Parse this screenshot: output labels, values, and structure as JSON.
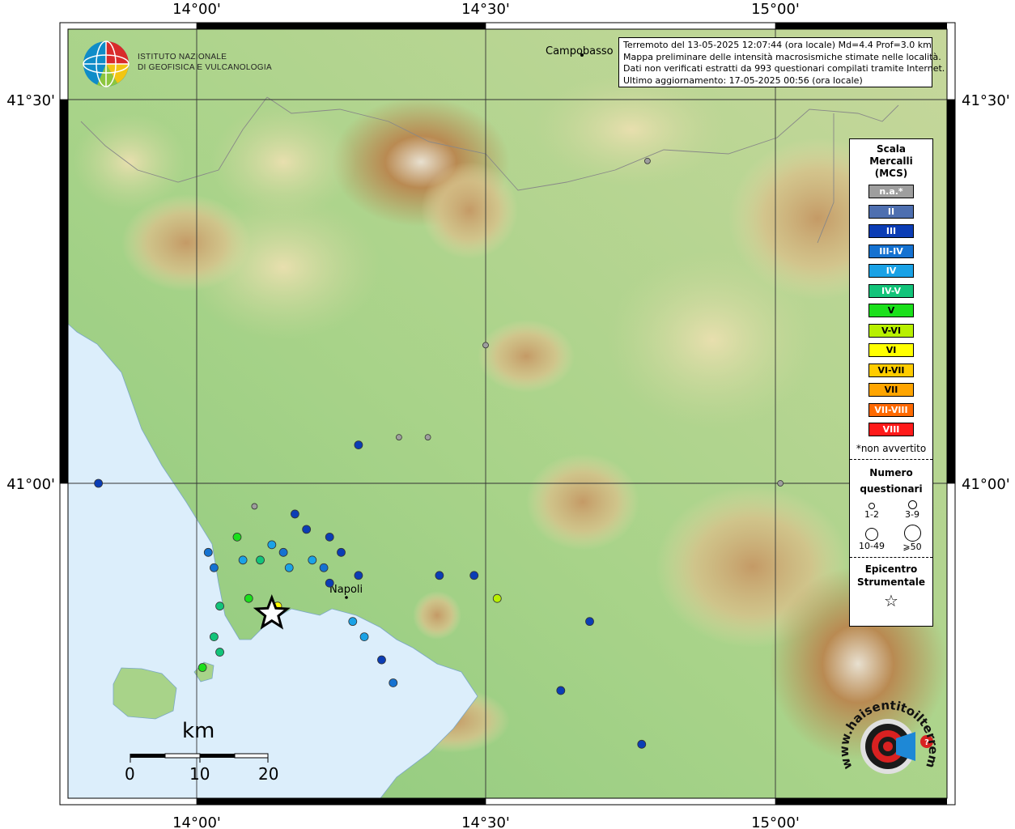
{
  "info": {
    "line1": "Terremoto del 13-05-2025 12:07:44 (ora locale) Md=4.4 Prof=3.0 km",
    "line2": "Mappa preliminare delle intensità macrosismiche stimate nelle località.",
    "line3": "Dati non verificati estratti da 993 questionari compilati tramite Internet.",
    "line4": "Ultimo aggiornamento: 17-05-2025 00:56 (ora locale)"
  },
  "institute": {
    "line1": "ISTITUTO NAZIONALE",
    "line2": "DI GEOFISICA E VULCANOLOGIA"
  },
  "axes": {
    "top": [
      "14°00'",
      "14°30'",
      "15°00'"
    ],
    "bottom": [
      "14°00'",
      "14°30'",
      "15°00'"
    ],
    "left": [
      "41°30'",
      "41°00'"
    ],
    "right": [
      "41°30'",
      "41°00'"
    ]
  },
  "places": {
    "campobasso": "Campobasso",
    "napoli": "Napoli"
  },
  "legend": {
    "title": [
      "Scala",
      "Mercalli",
      "(MCS)"
    ],
    "items": [
      {
        "label": "n.a.*",
        "color": "#9e9e9e"
      },
      {
        "label": "II",
        "color": "#4e6fb0"
      },
      {
        "label": "III",
        "color": "#0b3db5"
      },
      {
        "label": "III-IV",
        "color": "#1572d1"
      },
      {
        "label": "IV",
        "color": "#1aa2e6"
      },
      {
        "label": "IV-V",
        "color": "#12c47a"
      },
      {
        "label": "V",
        "color": "#1be01b"
      },
      {
        "label": "V-VI",
        "color": "#b8f000"
      },
      {
        "label": "VI",
        "color": "#ffff00"
      },
      {
        "label": "VI-VII",
        "color": "#ffcc00"
      },
      {
        "label": "VII",
        "color": "#ffa500"
      },
      {
        "label": "VII-VIII",
        "color": "#ff6a00"
      },
      {
        "label": "VIII",
        "color": "#ff1a1a"
      }
    ],
    "note": "*non avvertito",
    "questionari_title": [
      "Numero",
      "questionari"
    ],
    "sizes": [
      "1-2",
      "3-9",
      "10-49",
      "⩾50"
    ],
    "epicentro_title": [
      "Epicentro",
      "Strumentale"
    ]
  },
  "scalebar": {
    "unit": "km",
    "ticks": [
      "0",
      "10",
      "20"
    ]
  },
  "watermark": "www.haisentitoilterremoto.it",
  "epicenter": {
    "lon": 14.13,
    "lat": 40.83
  },
  "observations": [
    {
      "lon": 13.83,
      "lat": 41.0,
      "i": "III"
    },
    {
      "lon": 14.1,
      "lat": 40.97,
      "i": "n.a."
    },
    {
      "lon": 14.17,
      "lat": 40.96,
      "i": "III"
    },
    {
      "lon": 14.28,
      "lat": 41.05,
      "i": "III"
    },
    {
      "lon": 14.19,
      "lat": 40.94,
      "i": "III"
    },
    {
      "lon": 14.23,
      "lat": 40.93,
      "i": "III"
    },
    {
      "lon": 14.02,
      "lat": 40.91,
      "i": "III-IV"
    },
    {
      "lon": 14.03,
      "lat": 40.89,
      "i": "III-IV"
    },
    {
      "lon": 14.07,
      "lat": 40.93,
      "i": "V"
    },
    {
      "lon": 14.13,
      "lat": 40.92,
      "i": "IV"
    },
    {
      "lon": 14.15,
      "lat": 40.91,
      "i": "III-IV"
    },
    {
      "lon": 14.16,
      "lat": 40.89,
      "i": "IV"
    },
    {
      "lon": 14.11,
      "lat": 40.9,
      "i": "IV-V"
    },
    {
      "lon": 14.08,
      "lat": 40.9,
      "i": "IV"
    },
    {
      "lon": 14.2,
      "lat": 40.9,
      "i": "IV"
    },
    {
      "lon": 14.22,
      "lat": 40.89,
      "i": "III-IV"
    },
    {
      "lon": 14.25,
      "lat": 40.91,
      "i": "III"
    },
    {
      "lon": 14.28,
      "lat": 40.88,
      "i": "III"
    },
    {
      "lon": 14.23,
      "lat": 40.87,
      "i": "III"
    },
    {
      "lon": 14.09,
      "lat": 40.85,
      "i": "V"
    },
    {
      "lon": 14.04,
      "lat": 40.84,
      "i": "IV-V"
    },
    {
      "lon": 14.14,
      "lat": 40.84,
      "i": "VI"
    },
    {
      "lon": 14.27,
      "lat": 40.82,
      "i": "IV"
    },
    {
      "lon": 14.29,
      "lat": 40.8,
      "i": "IV"
    },
    {
      "lon": 14.32,
      "lat": 40.77,
      "i": "III"
    },
    {
      "lon": 14.03,
      "lat": 40.8,
      "i": "IV-V"
    },
    {
      "lon": 14.04,
      "lat": 40.78,
      "i": "IV-V"
    },
    {
      "lon": 14.01,
      "lat": 40.76,
      "i": "V"
    },
    {
      "lon": 14.42,
      "lat": 40.88,
      "i": "III"
    },
    {
      "lon": 14.48,
      "lat": 40.88,
      "i": "III"
    },
    {
      "lon": 14.52,
      "lat": 40.85,
      "i": "V-VI"
    },
    {
      "lon": 14.63,
      "lat": 40.73,
      "i": "III"
    },
    {
      "lon": 14.68,
      "lat": 40.82,
      "i": "III"
    },
    {
      "lon": 14.77,
      "lat": 40.66,
      "i": "III"
    },
    {
      "lon": 14.34,
      "lat": 40.74,
      "i": "III-IV"
    },
    {
      "lon": 14.5,
      "lat": 41.18,
      "i": "n.a."
    },
    {
      "lon": 14.4,
      "lat": 41.06,
      "i": "n.a."
    },
    {
      "lon": 14.35,
      "lat": 41.06,
      "i": "n.a."
    },
    {
      "lon": 14.78,
      "lat": 41.42,
      "i": "n.a."
    },
    {
      "lon": 15.01,
      "lat": 41.0,
      "i": "n.a."
    }
  ]
}
